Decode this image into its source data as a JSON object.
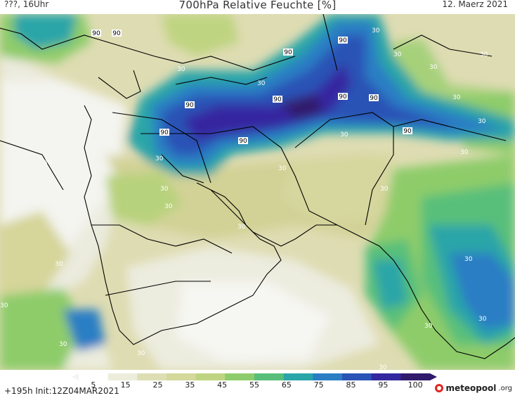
{
  "header": {
    "left": "???, 16Uhr",
    "title": "700hPa Relative Feuchte [%]",
    "right": "12. Maerz 2021"
  },
  "colorbar": {
    "ticks": [
      "5",
      "15",
      "25",
      "35",
      "45",
      "55",
      "65",
      "75",
      "85",
      "95",
      "100"
    ],
    "colors": [
      "#ffffff",
      "#ededdc",
      "#dedeb4",
      "#d4d89a",
      "#bfd481",
      "#8ecc6b",
      "#58bf7a",
      "#2aa5a8",
      "#2b7ec4",
      "#2a53b6",
      "#3428a0",
      "#301a6c"
    ]
  },
  "footer": {
    "run_info": "+195h Init:12Z04MAR2021"
  },
  "logo": {
    "name": "meteopool",
    "tld": ".org"
  },
  "contour_labels": [
    "90",
    "90",
    "90",
    "90",
    "90",
    "90",
    "90",
    "90",
    "90",
    "90",
    "90",
    "30",
    "30",
    "30",
    "30",
    "30",
    "30",
    "30",
    "30",
    "30",
    "30",
    "30",
    "30",
    "30",
    "30",
    "30",
    "30",
    "30",
    "30",
    "30",
    "30",
    "30",
    "30",
    "30",
    "30",
    "30"
  ]
}
